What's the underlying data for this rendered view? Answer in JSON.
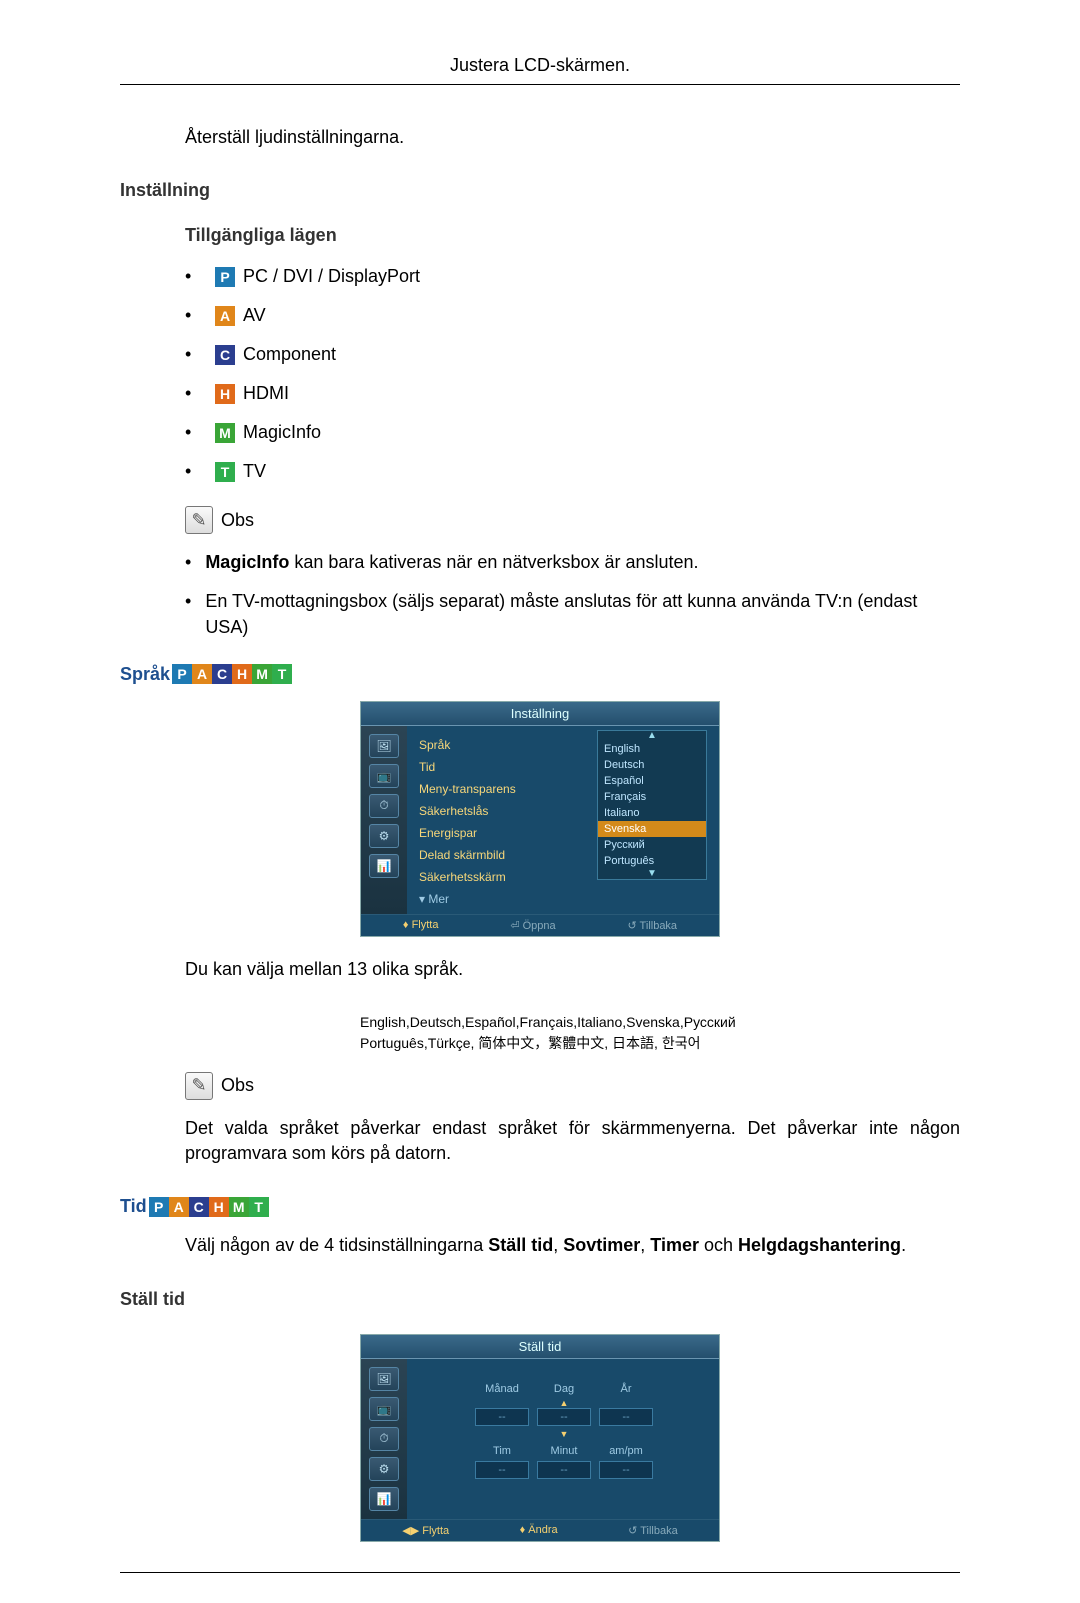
{
  "page_header": "Justera LCD-skärmen.",
  "intro": "Återställ ljudinställningarna.",
  "h_setting": "Inställning",
  "h_modes": "Tillgängliga lägen",
  "modes": [
    {
      "letter": "P",
      "bg": "#1e7ab3",
      "label": "PC / DVI / DisplayPort"
    },
    {
      "letter": "A",
      "bg": "#e0861a",
      "label": "AV"
    },
    {
      "letter": "C",
      "bg": "#2b3e8f",
      "label": "Component"
    },
    {
      "letter": "H",
      "bg": "#e06a1a",
      "label": "HDMI"
    },
    {
      "letter": "M",
      "bg": "#3aa537",
      "label": "MagicInfo"
    },
    {
      "letter": "T",
      "bg": "#2fae4d",
      "label": "TV"
    }
  ],
  "obs_label": "Obs",
  "notes1": [
    {
      "pre": "MagicInfo",
      "rest": " kan bara kativeras när en nätverksbox är ansluten."
    },
    {
      "pre": "",
      "rest": "En TV-mottagningsbox (säljs separat) måste anslutas för att kunna använda TV:n (endast USA)"
    }
  ],
  "h_sprak": "Språk",
  "osd1": {
    "title": "Inställning",
    "items": [
      "Språk",
      "Tid",
      "Meny-transparens",
      "Säkerhetslås",
      "Energispar",
      "Delad skärmbild",
      "Säkerhetsskärm"
    ],
    "mer": "▾ Mer",
    "drop": [
      "English",
      "Deutsch",
      "Español",
      "Français",
      "Italiano",
      "Svenska",
      "Русский",
      "Português"
    ],
    "drop_selected_index": 5,
    "foot1": "♦ Flytta",
    "foot2": "⏎ Öppna",
    "foot3": "↺ Tillbaka"
  },
  "sprak_intro": "Du kan välja mellan 13 olika språk.",
  "lang_list_1": "English,Deutsch,Español,Français,Italiano,Svenska,Русский",
  "lang_list_2": "Português,Türkçe, 简体中文，繁體中文, 日本語, 한국어",
  "sprak_note": "Det valda språket påverkar endast språket för skärmmenyerna. Det påverkar inte någon programvara som körs på datorn.",
  "h_tid": "Tid",
  "tid_intro_pre": "Välj någon av de 4 tidsinställningarna ",
  "tid_b1": "Ställ tid",
  "tid_s1": ", ",
  "tid_b2": "Sovtimer",
  "tid_s2": ", ",
  "tid_b3": "Timer",
  "tid_s3": " och ",
  "tid_b4": "Helgdagshantering",
  "tid_s4": ".",
  "h_stalltid": "Ställ tid",
  "osd2": {
    "title": "Ställ tid",
    "row1": [
      "Månad",
      "Dag",
      "År"
    ],
    "row2": [
      "Tim",
      "Minut",
      "am/pm"
    ],
    "vals": [
      "--",
      "--",
      "--",
      "--",
      "--",
      "--"
    ],
    "foot1": "◀▶ Flytta",
    "foot2": "♦ Ändra",
    "foot3": "↺ Tillbaka"
  },
  "side_icons": [
    "🖼",
    "📺",
    "⏱",
    "⚙",
    "📊"
  ]
}
